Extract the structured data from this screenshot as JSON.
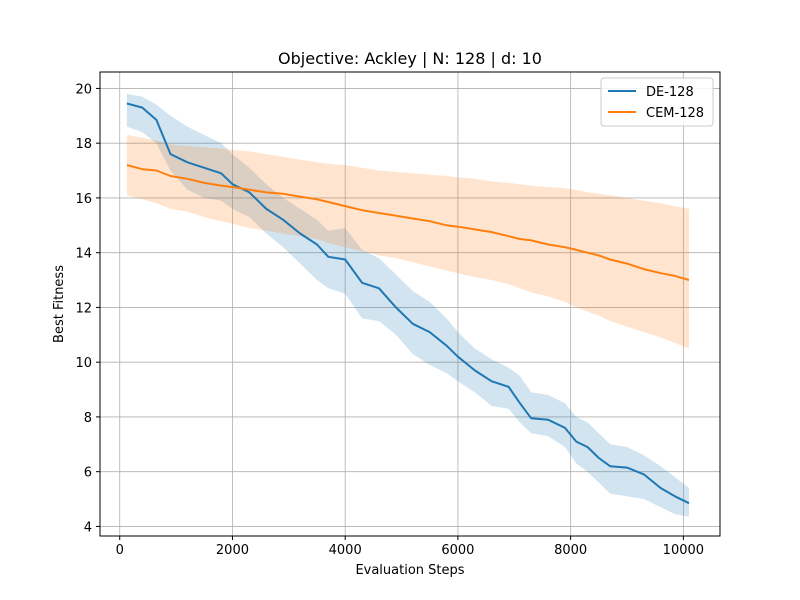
{
  "chart_data": {
    "type": "line",
    "title": "Objective: Ackley | N: 128 | d: 10",
    "xlabel": "Evaluation Steps",
    "ylabel": "Best Fitness",
    "xlim": [
      -350,
      10650
    ],
    "ylim": [
      3.65,
      20.6
    ],
    "xticks": [
      0,
      2000,
      4000,
      6000,
      8000,
      10000
    ],
    "yticks": [
      4,
      6,
      8,
      10,
      12,
      14,
      16,
      18,
      20
    ],
    "grid": true,
    "legend_position": "top-right",
    "series": [
      {
        "name": "DE-128",
        "color": "#1f77b4",
        "x": [
          128,
          400,
          650,
          900,
          1200,
          1500,
          1800,
          2000,
          2300,
          2600,
          2900,
          3200,
          3500,
          3700,
          4000,
          4300,
          4600,
          4900,
          5200,
          5500,
          5800,
          6000,
          6300,
          6600,
          6900,
          7100,
          7300,
          7600,
          7900,
          8100,
          8300,
          8500,
          8700,
          9000,
          9300,
          9600,
          9850,
          10100
        ],
        "values": [
          19.45,
          19.3,
          18.85,
          17.6,
          17.3,
          17.1,
          16.9,
          16.5,
          16.2,
          15.6,
          15.2,
          14.7,
          14.3,
          13.85,
          13.75,
          12.9,
          12.7,
          12.0,
          11.4,
          11.1,
          10.6,
          10.2,
          9.7,
          9.3,
          9.1,
          8.5,
          7.95,
          7.9,
          7.6,
          7.1,
          6.9,
          6.5,
          6.2,
          6.15,
          5.9,
          5.4,
          5.1,
          4.85
        ],
        "upper": [
          19.8,
          19.7,
          19.4,
          19.0,
          18.6,
          18.3,
          18.0,
          17.6,
          17.1,
          16.5,
          16.0,
          15.6,
          15.2,
          14.8,
          14.9,
          14.1,
          13.8,
          13.2,
          12.6,
          12.2,
          11.6,
          11.1,
          10.5,
          10.1,
          9.8,
          9.5,
          8.9,
          8.8,
          8.5,
          8.0,
          7.8,
          7.4,
          7.0,
          6.9,
          6.6,
          6.2,
          5.8,
          5.4
        ],
        "lower": [
          18.6,
          18.4,
          18.0,
          17.0,
          16.3,
          16.0,
          15.9,
          15.6,
          15.3,
          14.7,
          14.2,
          13.6,
          13.0,
          12.7,
          12.5,
          11.6,
          11.5,
          11.0,
          10.3,
          9.9,
          9.6,
          9.3,
          8.9,
          8.4,
          8.3,
          7.8,
          7.4,
          7.3,
          6.9,
          6.3,
          6.0,
          5.6,
          5.2,
          5.1,
          5.0,
          4.7,
          4.45,
          4.35
        ]
      },
      {
        "name": "CEM-128",
        "color": "#ff7f0e",
        "x": [
          128,
          400,
          650,
          900,
          1200,
          1500,
          1800,
          2000,
          2300,
          2600,
          2900,
          3200,
          3500,
          3700,
          4000,
          4300,
          4600,
          4900,
          5200,
          5500,
          5800,
          6000,
          6300,
          6600,
          6900,
          7100,
          7300,
          7600,
          7900,
          8100,
          8300,
          8500,
          8700,
          9000,
          9300,
          9600,
          9850,
          10100
        ],
        "values": [
          17.2,
          17.05,
          17.0,
          16.8,
          16.7,
          16.55,
          16.45,
          16.4,
          16.3,
          16.2,
          16.15,
          16.05,
          15.95,
          15.85,
          15.7,
          15.55,
          15.45,
          15.35,
          15.25,
          15.15,
          15.0,
          14.95,
          14.85,
          14.75,
          14.6,
          14.5,
          14.45,
          14.3,
          14.2,
          14.1,
          14.0,
          13.9,
          13.75,
          13.6,
          13.4,
          13.25,
          13.15,
          13.0
        ],
        "upper": [
          18.3,
          18.2,
          18.1,
          17.95,
          17.9,
          17.85,
          17.8,
          17.75,
          17.7,
          17.6,
          17.5,
          17.4,
          17.3,
          17.25,
          17.2,
          17.1,
          17.0,
          16.95,
          16.9,
          16.85,
          16.8,
          16.75,
          16.7,
          16.6,
          16.55,
          16.5,
          16.45,
          16.4,
          16.35,
          16.3,
          16.2,
          16.15,
          16.1,
          16.0,
          15.9,
          15.8,
          15.7,
          15.6
        ],
        "lower": [
          16.1,
          15.95,
          15.8,
          15.6,
          15.5,
          15.3,
          15.15,
          15.05,
          14.9,
          14.8,
          14.7,
          14.6,
          14.5,
          14.35,
          14.2,
          14.05,
          13.9,
          13.8,
          13.65,
          13.5,
          13.35,
          13.25,
          13.1,
          13.0,
          12.85,
          12.7,
          12.55,
          12.4,
          12.2,
          12.0,
          11.85,
          11.7,
          11.5,
          11.3,
          11.1,
          10.9,
          10.7,
          10.5
        ]
      }
    ]
  }
}
